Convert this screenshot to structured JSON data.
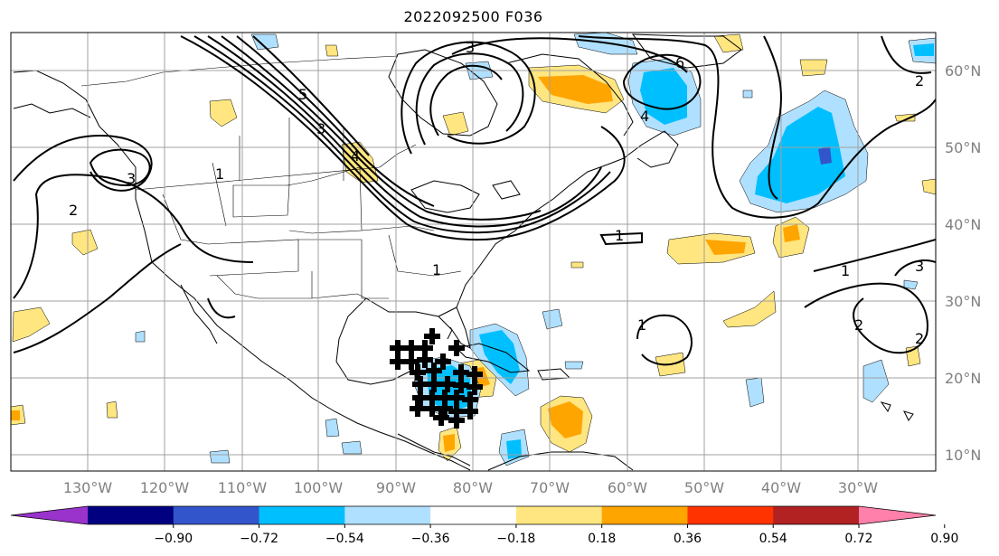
{
  "title": "2022092500 F036",
  "longitude_labels": [
    "130°W",
    "120°W",
    "110°W",
    "100°W",
    "90°W",
    "80°W",
    "70°W",
    "60°W",
    "50°W",
    "40°W",
    "30°W"
  ],
  "latitude_labels": [
    "60°N",
    "50°N",
    "40°N",
    "30°N",
    "20°N",
    "10°N"
  ],
  "colorbar": {
    "colors": [
      "#9933cc",
      "#000080",
      "#3355cc",
      "#00bfff",
      "#b0e0ff",
      "#ffffff",
      "#ffe680",
      "#ffa500",
      "#ff3300",
      "#b22222",
      "#ff80aa"
    ],
    "tick_labels": [
      "−0.90",
      "−0.72",
      "−0.54",
      "−0.36",
      "−0.18",
      "0.18",
      "0.36",
      "0.54",
      "0.72",
      "0.90"
    ]
  },
  "contour_labels": [
    "1",
    "1",
    "1",
    "1",
    "1",
    "2",
    "2",
    "2",
    "2",
    "3",
    "3",
    "3",
    "3",
    "4",
    "4",
    "5",
    "6"
  ]
}
